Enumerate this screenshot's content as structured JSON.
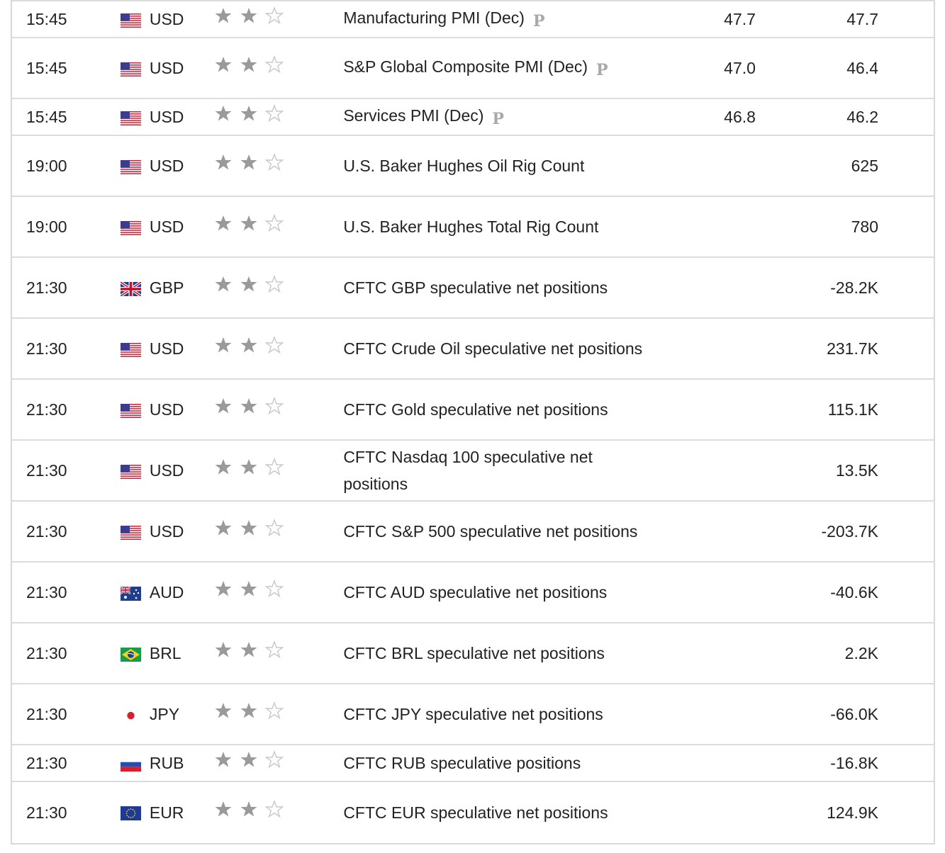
{
  "rows": [
    {
      "time": "15:45",
      "currency": "USD",
      "flag": "us-flag-icon",
      "stars": 2,
      "event": "Manufacturing PMI (Dec)",
      "prelim": "P",
      "actual": "47.7",
      "previous": "47.7"
    },
    {
      "time": "15:45",
      "currency": "USD",
      "flag": "us-flag-icon",
      "stars": 2,
      "event": "S&P Global Composite PMI (Dec)",
      "prelim": "P",
      "actual": "47.0",
      "previous": "46.4"
    },
    {
      "time": "15:45",
      "currency": "USD",
      "flag": "us-flag-icon",
      "stars": 2,
      "event": "Services PMI (Dec)",
      "prelim": "P",
      "actual": "46.8",
      "previous": "46.2"
    },
    {
      "time": "19:00",
      "currency": "USD",
      "flag": "us-flag-icon",
      "stars": 2,
      "event": "U.S. Baker Hughes Oil Rig Count",
      "prelim": "",
      "actual": "",
      "previous": "625"
    },
    {
      "time": "19:00",
      "currency": "USD",
      "flag": "us-flag-icon",
      "stars": 2,
      "event": "U.S. Baker Hughes Total Rig Count",
      "prelim": "",
      "actual": "",
      "previous": "780"
    },
    {
      "time": "21:30",
      "currency": "GBP",
      "flag": "uk-flag-icon",
      "stars": 2,
      "event": "CFTC GBP speculative net positions",
      "prelim": "",
      "actual": "",
      "previous": "-28.2K"
    },
    {
      "time": "21:30",
      "currency": "USD",
      "flag": "us-flag-icon",
      "stars": 2,
      "event": "CFTC Crude Oil speculative net positions",
      "prelim": "",
      "actual": "",
      "previous": "231.7K"
    },
    {
      "time": "21:30",
      "currency": "USD",
      "flag": "us-flag-icon",
      "stars": 2,
      "event": "CFTC Gold speculative net positions",
      "prelim": "",
      "actual": "",
      "previous": "115.1K"
    },
    {
      "time": "21:30",
      "currency": "USD",
      "flag": "us-flag-icon",
      "stars": 2,
      "event": "CFTC Nasdaq 100 speculative net positions",
      "prelim": "",
      "actual": "",
      "previous": "13.5K"
    },
    {
      "time": "21:30",
      "currency": "USD",
      "flag": "us-flag-icon",
      "stars": 2,
      "event": "CFTC S&P 500 speculative net positions",
      "prelim": "",
      "actual": "",
      "previous": "-203.7K"
    },
    {
      "time": "21:30",
      "currency": "AUD",
      "flag": "au-flag-icon",
      "stars": 2,
      "event": "CFTC AUD speculative net positions",
      "prelim": "",
      "actual": "",
      "previous": "-40.6K"
    },
    {
      "time": "21:30",
      "currency": "BRL",
      "flag": "br-flag-icon",
      "stars": 2,
      "event": "CFTC BRL speculative net positions",
      "prelim": "",
      "actual": "",
      "previous": "2.2K"
    },
    {
      "time": "21:30",
      "currency": "JPY",
      "flag": "jp-flag-icon",
      "stars": 2,
      "event": "CFTC JPY speculative net positions",
      "prelim": "",
      "actual": "",
      "previous": "-66.0K"
    },
    {
      "time": "21:30",
      "currency": "RUB",
      "flag": "ru-flag-icon",
      "stars": 2,
      "event": "CFTC RUB speculative positions",
      "prelim": "",
      "actual": "",
      "previous": "-16.8K"
    },
    {
      "time": "21:30",
      "currency": "EUR",
      "flag": "eu-flag-icon",
      "stars": 2,
      "event": "CFTC EUR speculative net positions",
      "prelim": "",
      "actual": "",
      "previous": "124.9K"
    }
  ],
  "colors": {
    "star_filled": "#9a9a9a",
    "star_empty": "#c8c8c8",
    "prelim": "#a9a9a9",
    "border": "#dcdcdc"
  }
}
